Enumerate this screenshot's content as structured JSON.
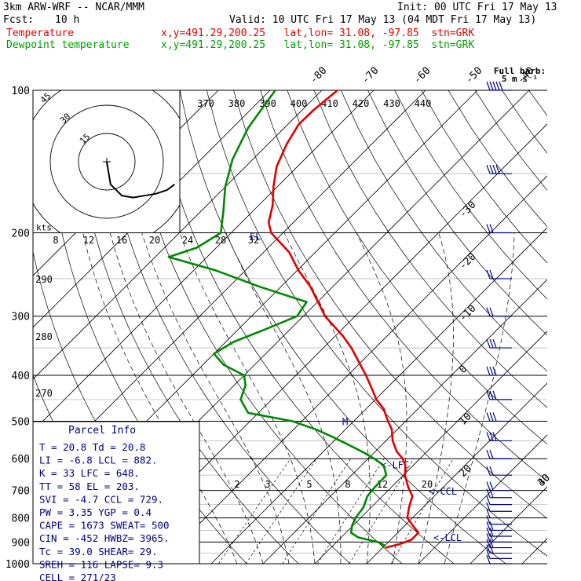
{
  "header": {
    "model": "3km ARW-WRF -- NCAR/MMM",
    "init": "Init: 00 UTC Fri 17 May 13",
    "fcst_label": "Fcst:",
    "fcst_value": "10 h",
    "valid": "Valid: 10 UTC Fri 17 May 13 (04 MDT Fri 17 May 13)",
    "line_temp_label": "Temperature",
    "line_temp_info": "x,y=491.29,200.25   lat,lon= 31.08, -97.85  stn=GRK",
    "line_dew_label": "Dewpoint temperature",
    "line_dew_info": "x,y=491.29,200.25   lat,lon= 31.08, -97.85  stn=GRK"
  },
  "barb_key": {
    "line1": "Full barb:",
    "line2": "5 m s⁻¹"
  },
  "hodo_label": "kts",
  "hodo_rings": [
    "15",
    "30",
    "45"
  ],
  "pressure_labels": [
    "100",
    "200",
    "300",
    "400",
    "500",
    "600",
    "700",
    "800",
    "900",
    "1000"
  ],
  "temp_labels_top": [
    "-80",
    "-70",
    "-60",
    "-50",
    "-40"
  ],
  "temp_labels_right": [
    "-30",
    "-20",
    "-10",
    "0",
    "10",
    "20",
    "30",
    "40"
  ],
  "theta_labels": [
    "370",
    "380",
    "390",
    "400",
    "410",
    "420",
    "430",
    "440"
  ],
  "theta_labels_left": [
    "290",
    "280",
    "270"
  ],
  "mixratio_labels_upper": [
    "8",
    "12",
    "16",
    "20",
    "24",
    "28",
    "32"
  ],
  "mixratio_labels_lower": [
    "2",
    "3",
    "5",
    "8",
    "12",
    "20"
  ],
  "level_markers": [
    "<-LFC",
    "<-CCL",
    "<-LCL",
    "M",
    "EL"
  ],
  "parcel": {
    "title": "Parcel Info",
    "rows": [
      "T   =   20.8  Td =  20.8",
      "LI  =   -6.8  LCL =  882.",
      "K   =     33  LFC =  648.",
      "TT  =     58  EL  =  203.",
      "SVI =   -4.7  CCL =  729.",
      "PW  =   3.35  YGP =   0.4",
      "CAPE =  1673  SWEAT=  500",
      "CIN  =  -452  HWBZ= 3965.",
      "Tc   =  39.0  SHEAR=  29.",
      "SREH =   116  LAPSE=  9.3",
      "CELL = 271/23"
    ]
  },
  "colors": {
    "temperature": "#e00000",
    "dewpoint": "#008800",
    "annotation": "#000080",
    "isobar": "#000000",
    "isotherm": "#000000"
  },
  "chart_data": {
    "type": "line",
    "y_scale": "log-pressure",
    "ylim": [
      1000,
      100
    ],
    "xlabel": "",
    "ylabel": "",
    "series": [
      {
        "name": "Temperature",
        "pressure": [
          925,
          910,
          890,
          860,
          830,
          800,
          760,
          720,
          690,
          650,
          620,
          600,
          580,
          550,
          520,
          500,
          470,
          450,
          420,
          400,
          380,
          350,
          330,
          300,
          280,
          260,
          240,
          220,
          200,
          190,
          175,
          160,
          145,
          130,
          118,
          110,
          100
        ],
        "values": [
          20.5,
          22.5,
          24.0,
          24.0,
          21.5,
          19.0,
          17.3,
          15.8,
          13.3,
          10.3,
          8.5,
          6.7,
          4.2,
          1.3,
          -1.1,
          -3.4,
          -6.7,
          -9.8,
          -13.7,
          -16.5,
          -19.6,
          -24.6,
          -28.6,
          -35.8,
          -39.9,
          -44.3,
          -49.8,
          -55.0,
          -62.3,
          -64.8,
          -67.3,
          -70.7,
          -74.0,
          -76.4,
          -77.9,
          -77.8,
          -77.0
        ]
      },
      {
        "name": "Dewpoint temperature",
        "pressure": [
          925,
          915,
          900,
          880,
          860,
          830,
          800,
          760,
          720,
          690,
          650,
          620,
          600,
          580,
          560,
          540,
          520,
          500,
          480,
          450,
          420,
          400,
          380,
          360,
          340,
          320,
          300,
          280,
          260,
          240,
          225,
          215,
          200,
          180,
          160,
          140,
          120,
          100
        ],
        "values": [
          20.0,
          19.9,
          18.0,
          13.3,
          11.0,
          9.8,
          9.0,
          8.5,
          7.1,
          6.8,
          6.7,
          4.3,
          1.2,
          -2.5,
          -6.6,
          -11.0,
          -15.8,
          -21.8,
          -32.0,
          -36.0,
          -37.8,
          -40.0,
          -46.0,
          -50.0,
          -48.5,
          -44.8,
          -41.2,
          -42.1,
          -54.1,
          -65.8,
          -77.4,
          -73.8,
          -72.0,
          -75.7,
          -80.0,
          -83.9,
          -87.0,
          -89.0
        ]
      }
    ],
    "x_axis": {
      "label": "",
      "skewed_isotherms_deg_c": [
        -80,
        -70,
        -60,
        -50,
        -40,
        -30,
        -20,
        -10,
        0,
        10,
        20,
        30,
        40
      ]
    },
    "isobars_hpa": [
      100,
      200,
      300,
      400,
      500,
      600,
      700,
      800,
      900,
      1000
    ],
    "levels_hpa": {
      "LCL": 882,
      "LFC": 648,
      "EL": 203,
      "CCL": 729
    },
    "wind_barbs": {
      "pressure": [
        1000,
        975,
        950,
        925,
        900,
        875,
        850,
        825,
        800,
        775,
        750,
        725,
        700,
        650,
        600,
        550,
        500,
        450,
        400,
        350,
        300,
        250,
        200,
        150,
        100
      ],
      "speed_ms": [
        6,
        8,
        10,
        12,
        12,
        11,
        10,
        9,
        8,
        8,
        9,
        10,
        10,
        12,
        14,
        15,
        16,
        17,
        18,
        15,
        12,
        12,
        14,
        22,
        26
      ],
      "direction_deg": [
        180,
        190,
        200,
        210,
        220,
        225,
        230,
        235,
        240,
        245,
        250,
        250,
        255,
        260,
        260,
        262,
        265,
        265,
        268,
        270,
        270,
        275,
        280,
        285,
        290
      ]
    },
    "hodograph": {
      "u_kts": [
        0,
        2,
        8,
        14,
        20,
        26,
        32,
        36
      ],
      "v_kts": [
        0,
        -12,
        -18,
        -19,
        -18,
        -17,
        -15,
        -12
      ]
    }
  }
}
